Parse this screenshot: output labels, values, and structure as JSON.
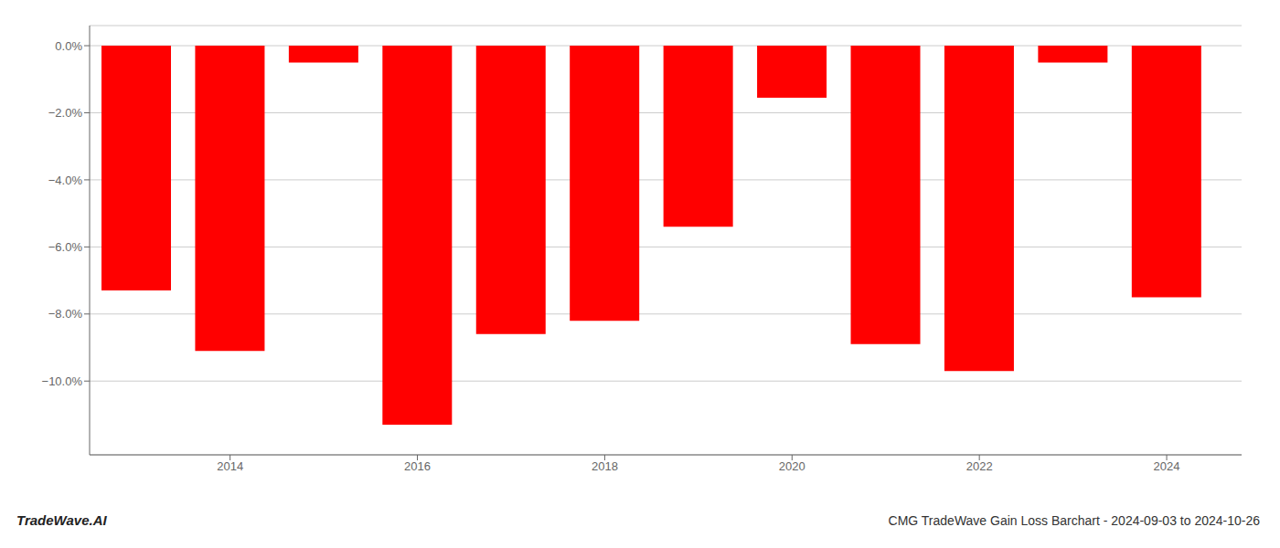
{
  "chart_data": {
    "type": "bar",
    "title": "CMG TradeWave Gain Loss Barchart - 2024-09-03 to 2024-10-26",
    "annotations": [
      "TradeWave.AI"
    ],
    "x": [
      2013,
      2014,
      2015,
      2016,
      2017,
      2018,
      2019,
      2020,
      2021,
      2022,
      2023,
      2024
    ],
    "values": [
      -7.3,
      -9.1,
      -0.5,
      -11.3,
      -8.6,
      -8.2,
      -5.4,
      -1.55,
      -8.9,
      -9.7,
      -0.5,
      -7.5
    ],
    "color": "#ff0000",
    "xlim": [
      2012.5,
      2024.8
    ],
    "xticks": [
      2014,
      2016,
      2018,
      2020,
      2022,
      2024
    ],
    "ylim": [
      -12.2,
      0.6
    ],
    "yticks": [
      {
        "value": 0.0,
        "label": "0.0%"
      },
      {
        "value": -2.0,
        "label": "−2.0%"
      },
      {
        "value": -4.0,
        "label": "−4.0%"
      },
      {
        "value": -6.0,
        "label": "−6.0%"
      },
      {
        "value": -8.0,
        "label": "−8.0%"
      },
      {
        "value": -10.0,
        "label": "−10.0%"
      }
    ],
    "grid": true
  }
}
